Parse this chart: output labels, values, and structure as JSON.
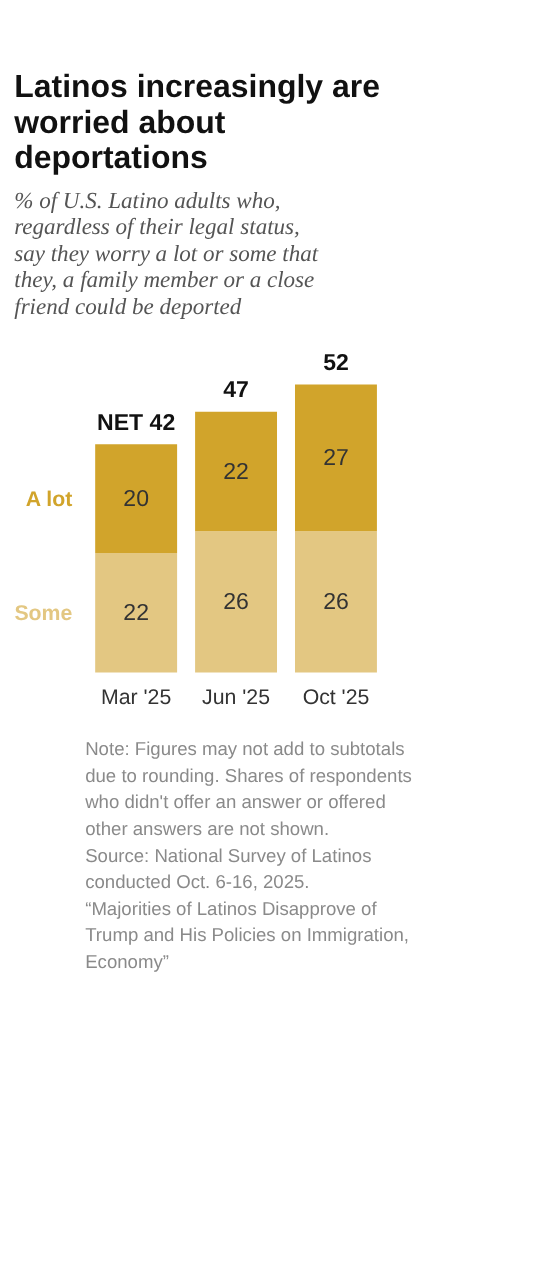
{
  "chart_data": {
    "type": "bar",
    "title": "Latinos increasingly are worried about deportations",
    "subtitle": "% of U.S. Latino adults who, regardless of their legal status, say they worry a lot or some that they, a family member or a close friend could be deported",
    "categories": [
      "Mar '25",
      "Jun '25",
      "Oct '25"
    ],
    "stacked": true,
    "data_labels": true,
    "legend": false,
    "series": [
      {
        "name": "Some",
        "color": "#e3c782",
        "values": [
          22,
          26,
          26
        ]
      },
      {
        "name": "A lot",
        "color": "#d1a42b",
        "values": [
          20,
          22,
          27
        ]
      }
    ],
    "totals": [
      "NET 42",
      "47",
      "52"
    ],
    "annotations": [
      "Note: Figures may not add to subtotals due to rounding. Shares of respondents who didn't offer an answer or offered other answers are not shown.",
      "Source: National Survey of Latinos conducted Oct. 6-16, 2025.",
      "“Majorities of Latinos Disapprove of Trump and His Policies on Immigration, Economy”"
    ]
  }
}
